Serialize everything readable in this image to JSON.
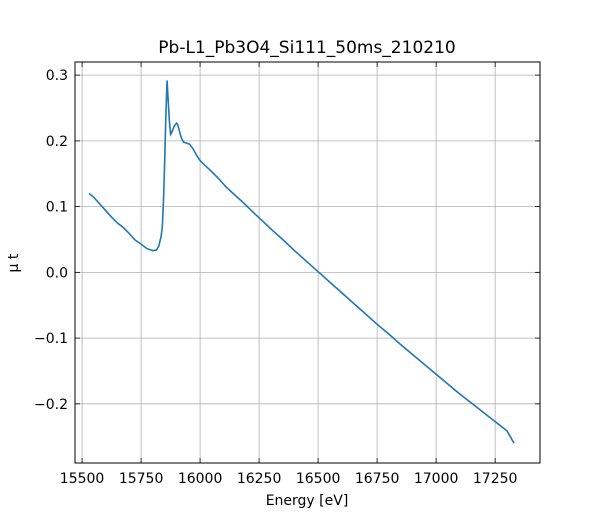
{
  "chart_data": {
    "type": "line",
    "title": "Pb-L1_Pb3O4_Si111_50ms_210210",
    "xlabel": "Energy [eV]",
    "ylabel": "μ t",
    "xlim": [
      15470,
      17440
    ],
    "ylim": [
      -0.29,
      0.32
    ],
    "xticks": [
      15500,
      15750,
      16000,
      16250,
      16500,
      16750,
      17000,
      17250
    ],
    "xtick_labels": [
      "15500",
      "15750",
      "16000",
      "16250",
      "16500",
      "16750",
      "17000",
      "17250"
    ],
    "yticks": [
      -0.2,
      -0.1,
      0.0,
      0.1,
      0.2,
      0.3
    ],
    "ytick_labels": [
      "−0.2",
      "−0.1",
      "0.0",
      "0.1",
      "0.2",
      "0.3"
    ],
    "grid": true,
    "line_color": "#1f77b4",
    "series": [
      {
        "x": [
          15530,
          15550,
          15575,
          15600,
          15625,
          15650,
          15675,
          15700,
          15725,
          15750,
          15775,
          15800,
          15815,
          15825,
          15835,
          15840,
          15845,
          15850,
          15855,
          15860,
          15865,
          15870,
          15875,
          15880,
          15890,
          15900,
          15905,
          15910,
          15920,
          15930,
          15940,
          15955,
          15970,
          15985,
          16000,
          16020,
          16050,
          16080,
          16110,
          16140,
          16180,
          16220,
          16250,
          16300,
          16350,
          16400,
          16450,
          16500,
          16550,
          16600,
          16650,
          16700,
          16750,
          16800,
          16850,
          16900,
          16950,
          17000,
          17050,
          17100,
          17150,
          17200,
          17250,
          17300,
          17330
        ],
        "y": [
          0.12,
          0.114,
          0.104,
          0.094,
          0.084,
          0.075,
          0.068,
          0.059,
          0.049,
          0.043,
          0.036,
          0.033,
          0.034,
          0.04,
          0.055,
          0.07,
          0.11,
          0.17,
          0.24,
          0.292,
          0.26,
          0.23,
          0.21,
          0.213,
          0.222,
          0.227,
          0.225,
          0.218,
          0.205,
          0.198,
          0.197,
          0.195,
          0.188,
          0.178,
          0.17,
          0.163,
          0.153,
          0.142,
          0.13,
          0.12,
          0.107,
          0.093,
          0.083,
          0.066,
          0.05,
          0.033,
          0.017,
          0.001,
          -0.015,
          -0.031,
          -0.047,
          -0.063,
          -0.079,
          -0.094,
          -0.11,
          -0.125,
          -0.14,
          -0.155,
          -0.17,
          -0.185,
          -0.199,
          -0.213,
          -0.227,
          -0.241,
          -0.26
        ]
      }
    ]
  }
}
